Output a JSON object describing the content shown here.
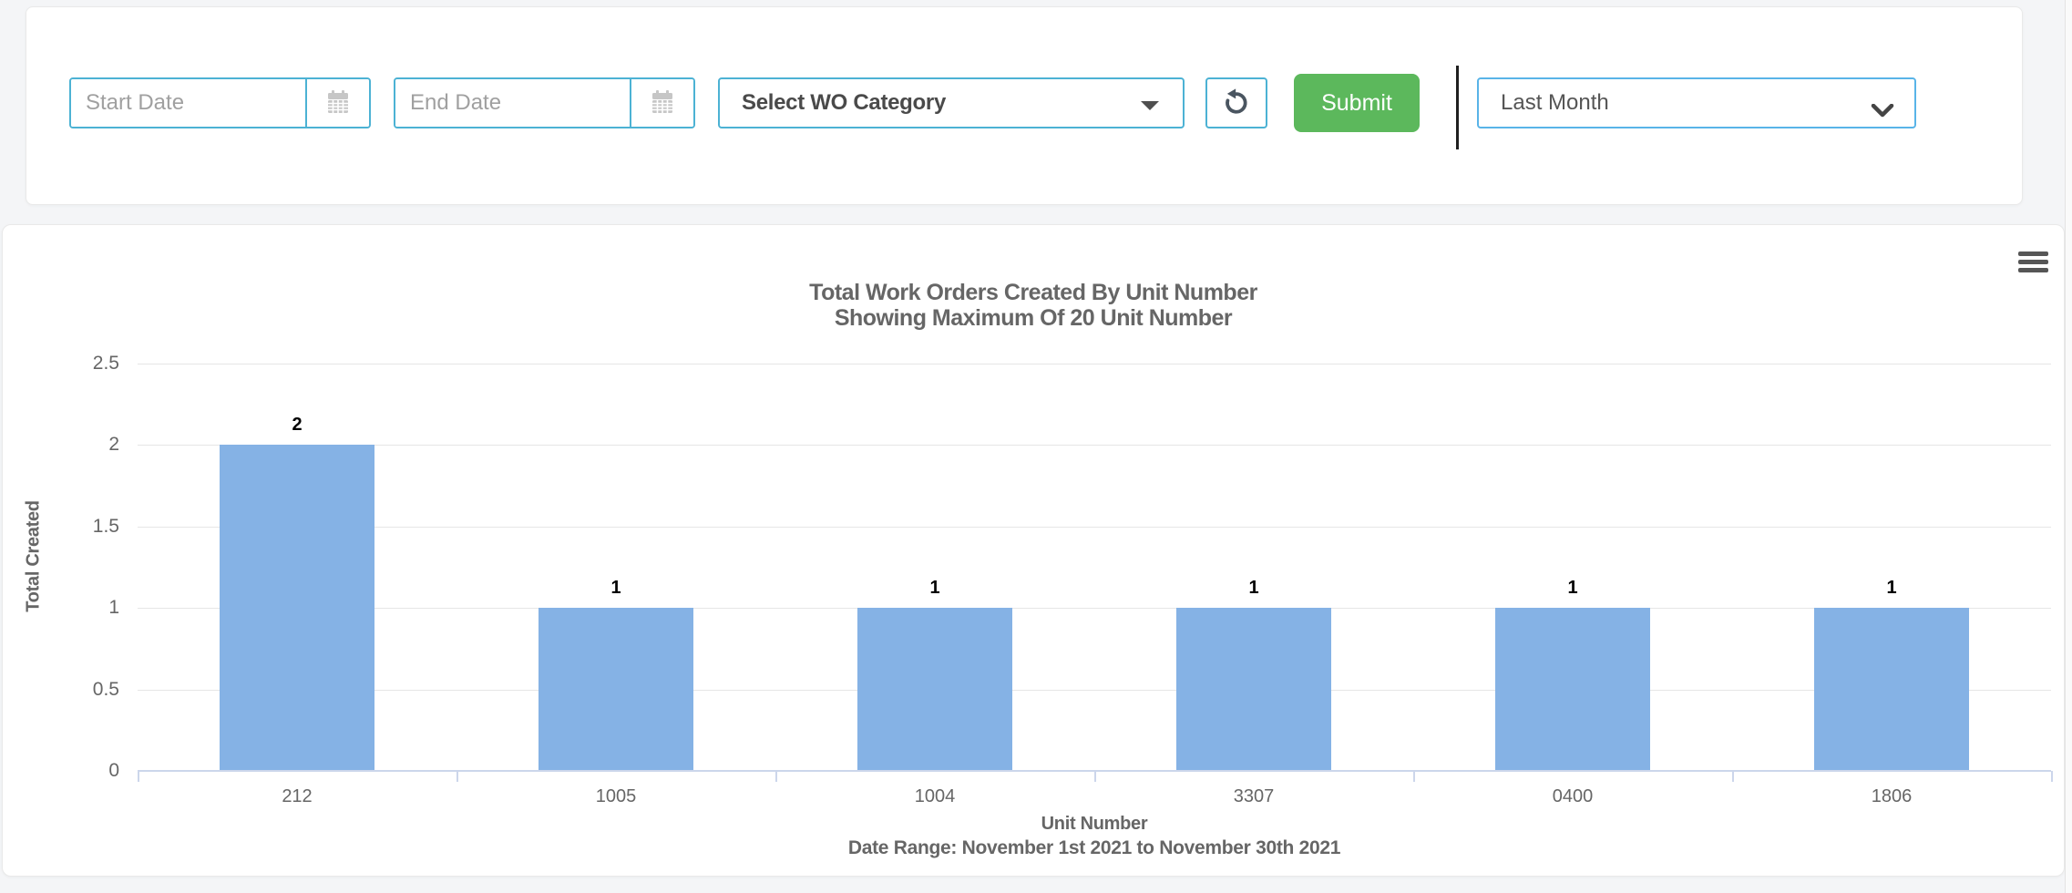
{
  "filters": {
    "start_date": {
      "placeholder": "Start Date",
      "icon": "calendar-icon"
    },
    "end_date": {
      "placeholder": "End Date",
      "icon": "calendar-icon"
    },
    "wo_category": {
      "value": "Select WO Category",
      "icon": "caret-down-icon"
    },
    "refresh": {
      "icon": "rotate-counterclockwise-icon"
    },
    "submit_label": "Submit",
    "date_range_select": {
      "value": "Last Month",
      "icon": "chevron-down-icon"
    }
  },
  "chart": {
    "menu_icon": "hamburger-menu-icon"
  },
  "chart_data": {
    "type": "bar",
    "title": "Total Work Orders Created By Unit Number",
    "subtitle": "Showing Maximum Of 20 Unit Number",
    "categories": [
      "212",
      "1005",
      "1004",
      "3307",
      "0400",
      "1806"
    ],
    "values": [
      2,
      1,
      1,
      1,
      1,
      1
    ],
    "data_labels": [
      "2",
      "1",
      "1",
      "1",
      "1",
      "1"
    ],
    "xlabel": "Unit Number",
    "x_subtitle": "Date Range: November 1st 2021 to November 30th 2021",
    "ylabel": "Total Created",
    "ylim": [
      0,
      2.5
    ],
    "yticks": [
      0,
      0.5,
      1,
      1.5,
      2,
      2.5
    ],
    "grid": true,
    "legend": "none",
    "bar_color": "#85b2e5"
  },
  "colors": {
    "input_border": "#4cb2d4",
    "lastmonth_border": "#59b4e8",
    "submit_green": "#5cb85c",
    "axis_line": "#ccd6eb",
    "gridline": "#e6e6e6",
    "chart_text": "#666666",
    "bar_fill": "#85b2e5",
    "page_bg": "#f4f5f7"
  }
}
